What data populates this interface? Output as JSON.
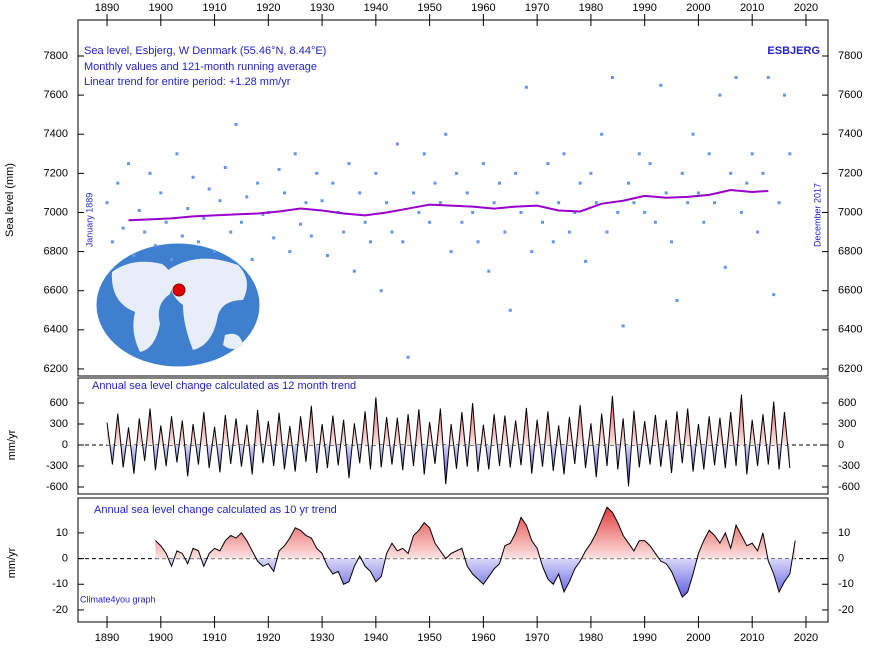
{
  "chart_data": [
    {
      "type": "scatter",
      "title_lines": [
        "Sea level, Esbjerg, W Denmark (55.46°N, 8.44°E)",
        "Monthly values and 121-month running average",
        "Linear trend for entire period: +1.28 mm/yr"
      ],
      "station": "ESBJERG",
      "start_label": "January 1889",
      "end_label": "December 2017",
      "y_label": "Sea level (mm)",
      "xlim": [
        1884.6,
        2024.1
      ],
      "xticks": [
        1890,
        1900,
        1910,
        1920,
        1930,
        1940,
        1950,
        1960,
        1970,
        1980,
        1990,
        2000,
        2010,
        2020
      ],
      "ylim": [
        6164,
        7984
      ],
      "yticks": [
        6200,
        6400,
        6600,
        6800,
        7000,
        7200,
        7400,
        7600,
        7800
      ],
      "series": [
        {
          "kind": "points",
          "color": "#6495ed",
          "x": [
            1890,
            1891,
            1892,
            1893,
            1894,
            1895,
            1896,
            1897,
            1898,
            1899,
            1900,
            1901,
            1902,
            1903,
            1904,
            1905,
            1906,
            1907,
            1908,
            1909,
            1910,
            1911,
            1912,
            1913,
            1914,
            1915,
            1916,
            1917,
            1918,
            1919,
            1920,
            1921,
            1922,
            1923,
            1924,
            1925,
            1926,
            1927,
            1928,
            1929,
            1930,
            1931,
            1932,
            1933,
            1934,
            1935,
            1936,
            1937,
            1938,
            1939,
            1940,
            1941,
            1942,
            1943,
            1944,
            1945,
            1946,
            1947,
            1948,
            1949,
            1950,
            1951,
            1952,
            1953,
            1954,
            1955,
            1956,
            1957,
            1958,
            1959,
            1960,
            1961,
            1962,
            1963,
            1964,
            1965,
            1966,
            1967,
            1968,
            1969,
            1970,
            1971,
            1972,
            1973,
            1974,
            1975,
            1976,
            1977,
            1978,
            1979,
            1980,
            1981,
            1982,
            1983,
            1984,
            1985,
            1986,
            1987,
            1988,
            1989,
            1990,
            1991,
            1992,
            1993,
            1994,
            1995,
            1996,
            1997,
            1998,
            1999,
            2000,
            2001,
            2002,
            2003,
            2004,
            2005,
            2006,
            2007,
            2008,
            2009,
            2010,
            2011,
            2012,
            2013,
            2014,
            2015,
            2016,
            2017
          ],
          "values": [
            7050,
            6850,
            7150,
            6920,
            7250,
            6780,
            7010,
            6900,
            7200,
            6830,
            7100,
            6950,
            6760,
            7300,
            6880,
            7020,
            7180,
            6850,
            6970,
            7120,
            6800,
            7060,
            7230,
            6900,
            7450,
            6950,
            7080,
            6760,
            7150,
            6990,
            7000,
            6870,
            7220,
            7100,
            6800,
            7300,
            6940,
            7050,
            6880,
            7200,
            7060,
            6780,
            7150,
            7000,
            6900,
            7250,
            6700,
            7100,
            6950,
            6850,
            7200,
            6600,
            7050,
            6900,
            7350,
            6850,
            6260,
            7100,
            7000,
            7300,
            6950,
            7150,
            7050,
            7400,
            6800,
            7200,
            6950,
            7100,
            7000,
            6850,
            7250,
            6700,
            7050,
            7150,
            6900,
            6500,
            7200,
            7000,
            7640,
            6800,
            7100,
            6950,
            7250,
            6850,
            7050,
            7300,
            6900,
            7000,
            7150,
            6750,
            7200,
            7050,
            7400,
            6900,
            7690,
            7000,
            6420,
            7150,
            7050,
            7300,
            7000,
            7250,
            6950,
            7650,
            7100,
            6850,
            6550,
            7200,
            7050,
            7400,
            7100,
            6950,
            7300,
            7050,
            7600,
            6720,
            7200,
            7690,
            7000,
            7150,
            7300,
            6900,
            7200,
            7690,
            6580,
            7050,
            7600,
            7300
          ]
        },
        {
          "kind": "line",
          "color": "#9900cc",
          "x": [
            1894,
            1898,
            1902,
            1906,
            1910,
            1914,
            1918,
            1922,
            1926,
            1930,
            1934,
            1938,
            1942,
            1946,
            1950,
            1954,
            1958,
            1962,
            1966,
            1970,
            1974,
            1978,
            1982,
            1986,
            1990,
            1994,
            1998,
            2002,
            2006,
            2010,
            2013
          ],
          "values": [
            6960,
            6965,
            6970,
            6980,
            6985,
            6990,
            6995,
            7005,
            7020,
            7010,
            6995,
            6985,
            7000,
            7020,
            7040,
            7035,
            7030,
            7020,
            7030,
            7035,
            7010,
            7005,
            7045,
            7060,
            7085,
            7075,
            7080,
            7090,
            7115,
            7105,
            7110
          ]
        }
      ]
    },
    {
      "type": "area",
      "title": "Annual sea level change calculated as 12 month trend",
      "y_label": "mm/yr",
      "xlim": [
        1884.6,
        2024.1
      ],
      "ylim": [
        -700,
        957
      ],
      "yticks": [
        -600,
        -300,
        0,
        300,
        600
      ],
      "zero_line": true,
      "positive_color": "#e02020",
      "negative_color": "#1010d0",
      "x": [
        1890,
        1891,
        1892,
        1893,
        1894,
        1895,
        1896,
        1897,
        1898,
        1899,
        1900,
        1901,
        1902,
        1903,
        1904,
        1905,
        1906,
        1907,
        1908,
        1909,
        1910,
        1911,
        1912,
        1913,
        1914,
        1915,
        1916,
        1917,
        1918,
        1919,
        1920,
        1921,
        1922,
        1923,
        1924,
        1925,
        1926,
        1927,
        1928,
        1929,
        1930,
        1931,
        1932,
        1933,
        1934,
        1935,
        1936,
        1937,
        1938,
        1939,
        1940,
        1941,
        1942,
        1943,
        1944,
        1945,
        1946,
        1947,
        1948,
        1949,
        1950,
        1951,
        1952,
        1953,
        1954,
        1955,
        1956,
        1957,
        1958,
        1959,
        1960,
        1961,
        1962,
        1963,
        1964,
        1965,
        1966,
        1967,
        1968,
        1969,
        1970,
        1971,
        1972,
        1973,
        1974,
        1975,
        1976,
        1977,
        1978,
        1979,
        1980,
        1981,
        1982,
        1983,
        1984,
        1985,
        1986,
        1987,
        1988,
        1989,
        1990,
        1991,
        1992,
        1993,
        1994,
        1995,
        1996,
        1997,
        1998,
        1999,
        2000,
        2001,
        2002,
        2003,
        2004,
        2005,
        2006,
        2007,
        2008,
        2009,
        2010,
        2011,
        2012,
        2013,
        2014,
        2015,
        2016,
        2017
      ],
      "values": [
        320,
        -280,
        450,
        -320,
        250,
        -410,
        380,
        -230,
        520,
        -360,
        280,
        -300,
        410,
        -250,
        350,
        -450,
        300,
        -280,
        470,
        -330,
        260,
        -390,
        430,
        -270,
        380,
        -310,
        290,
        -420,
        500,
        -260,
        340,
        -300,
        460,
        -350,
        270,
        -380,
        410,
        -240,
        560,
        -400,
        300,
        -330,
        420,
        -290,
        360,
        -470,
        310,
        -260,
        480,
        -350,
        680,
        -320,
        400,
        -280,
        390,
        -360,
        440,
        -300,
        510,
        -420,
        330,
        -270,
        520,
        -560,
        300,
        -340,
        470,
        -310,
        600,
        -380,
        290,
        -350,
        440,
        -300,
        420,
        -320,
        350,
        -290,
        530,
        -410,
        360,
        -310,
        480,
        -370,
        280,
        -420,
        400,
        -270,
        570,
        -330,
        310,
        -460,
        450,
        -300,
        700,
        -350,
        380,
        -590,
        490,
        -320,
        340,
        -280,
        430,
        -310,
        360,
        -400,
        480,
        -260,
        520,
        -380,
        300,
        -350,
        410,
        -290,
        390,
        -330,
        470,
        -300,
        720,
        -420,
        360,
        -300,
        440,
        -280,
        620,
        -350,
        470,
        -330
      ]
    },
    {
      "type": "area",
      "title": "Annual sea level change calculated as 10 yr trend",
      "y_label": "mm/yr",
      "credit": "Climate4you graph",
      "xlim": [
        1884.6,
        2024.1
      ],
      "xticks": [
        1890,
        1900,
        1910,
        1920,
        1930,
        1940,
        1950,
        1960,
        1970,
        1980,
        1990,
        2000,
        2010,
        2020
      ],
      "ylim": [
        -24.7,
        23.6
      ],
      "yticks": [
        -20,
        -10,
        0,
        10
      ],
      "zero_line": true,
      "positive_color": "#e02020",
      "negative_color": "#1010d0",
      "x": [
        1899,
        1900,
        1901,
        1902,
        1903,
        1904,
        1905,
        1906,
        1907,
        1908,
        1909,
        1910,
        1911,
        1912,
        1913,
        1914,
        1915,
        1916,
        1917,
        1918,
        1919,
        1920,
        1921,
        1922,
        1923,
        1924,
        1925,
        1926,
        1927,
        1928,
        1929,
        1930,
        1931,
        1932,
        1933,
        1934,
        1935,
        1936,
        1937,
        1938,
        1939,
        1940,
        1941,
        1942,
        1943,
        1944,
        1945,
        1946,
        1947,
        1948,
        1949,
        1950,
        1951,
        1952,
        1953,
        1954,
        1955,
        1956,
        1957,
        1958,
        1959,
        1960,
        1961,
        1962,
        1963,
        1964,
        1965,
        1966,
        1967,
        1968,
        1969,
        1970,
        1971,
        1972,
        1973,
        1974,
        1975,
        1976,
        1977,
        1978,
        1979,
        1980,
        1981,
        1982,
        1983,
        1984,
        1985,
        1986,
        1987,
        1988,
        1989,
        1990,
        1991,
        1992,
        1993,
        1994,
        1995,
        1996,
        1997,
        1998,
        1999,
        2000,
        2001,
        2002,
        2003,
        2004,
        2005,
        2006,
        2007,
        2008,
        2009,
        2010,
        2011,
        2012,
        2013,
        2014,
        2015,
        2016,
        2017,
        2018
      ],
      "values": [
        7,
        5,
        2,
        -3,
        3,
        2,
        -2,
        4,
        3,
        -3,
        2,
        4,
        3,
        7,
        9,
        8,
        10,
        7,
        3,
        -1,
        -3,
        -2,
        -5,
        3,
        5,
        8,
        12,
        11,
        9,
        8,
        4,
        2,
        -3,
        -6,
        -5,
        -10,
        -9,
        -3,
        1,
        -3,
        -5,
        -9,
        -7,
        2,
        6,
        3,
        4,
        2,
        9,
        11,
        14,
        12,
        6,
        3,
        0,
        2,
        3,
        4,
        -3,
        -6,
        -8,
        -10,
        -7,
        -4,
        -2,
        5,
        6,
        10,
        16,
        13,
        7,
        4,
        -3,
        -8,
        -10,
        -6,
        -13,
        -9,
        -4,
        -1,
        3,
        6,
        10,
        15,
        20,
        18,
        14,
        9,
        6,
        3,
        7,
        7,
        5,
        2,
        -1,
        -2,
        -5,
        -10,
        -15,
        -13,
        -6,
        2,
        7,
        11,
        9,
        6,
        10,
        4,
        13,
        9,
        5,
        6,
        3,
        10,
        -1,
        -6,
        -13,
        -9,
        -6,
        7
      ]
    }
  ]
}
